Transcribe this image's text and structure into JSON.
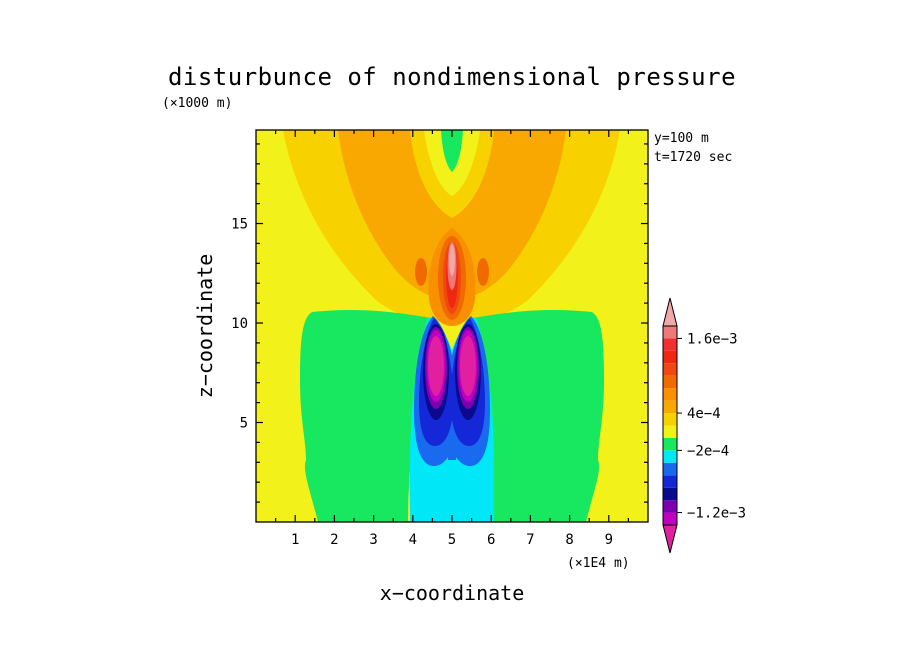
{
  "chart_data": {
    "type": "contour",
    "title": "disturbunce of nondimensional pressure",
    "y_scale_note": "(×1000 m)",
    "x_scale_note": "(×1E4 m)",
    "xlabel": "x−coordinate",
    "ylabel": "z−coordinate",
    "annotations": [
      "y=100 m",
      "t=1720 sec"
    ],
    "xlim": [
      0,
      10
    ],
    "ylim": [
      0,
      19.7
    ],
    "x_ticks": [
      "1",
      "2",
      "3",
      "4",
      "5",
      "6",
      "7",
      "8",
      "9"
    ],
    "y_ticks": [
      "5",
      "10",
      "15"
    ],
    "x_tick_values": [
      1,
      2,
      3,
      4,
      5,
      6,
      7,
      8,
      9
    ],
    "y_tick_values": [
      5,
      10,
      15
    ],
    "grid": false,
    "colorbar": {
      "levels": [
        "-1.6e-3",
        "-1.4e-3",
        "-1.2e-3",
        "-1e-3",
        "-8e-4",
        "-6e-4",
        "-4e-4",
        "-2e-4",
        "0",
        "2e-4",
        "4e-4",
        "6e-4",
        "8e-4",
        "1e-3",
        "1.2e-3",
        "1.4e-3",
        "1.6e-3",
        "1.8e-3"
      ],
      "labeled_ticks": [
        "1.6e-3",
        "4e-4",
        "-2e-4",
        "-1.2e-3"
      ],
      "colors": [
        "#e020a0",
        "#c000c0",
        "#7a00b0",
        "#0a0a90",
        "#1428d8",
        "#1a6af0",
        "#00e8f8",
        "#18e860",
        "#f2f21a",
        "#f8d200",
        "#f8a800",
        "#f89000",
        "#f06a00",
        "#f04810",
        "#f02810",
        "#f03030",
        "#f07878",
        "#f0a8a8"
      ]
    },
    "regions": [
      {
        "name": "background",
        "value_range": [
          0,
          0.0002
        ]
      },
      {
        "name": "lateral lows",
        "value_range": [
          -0.0002,
          0
        ]
      },
      {
        "name": "upper fan",
        "value_range": [
          0.0002,
          0.0008
        ]
      },
      {
        "name": "upper core max",
        "value_range": [
          0.0012,
          0.0018
        ],
        "x": 5.0,
        "z": 13.0
      },
      {
        "name": "lower left min",
        "value_range": [
          -0.0016,
          -0.0012
        ],
        "x": 4.5,
        "z": 8.1
      },
      {
        "name": "lower right min",
        "value_range": [
          -0.0016,
          -0.0012
        ],
        "x": 5.5,
        "z": 8.1
      }
    ]
  }
}
